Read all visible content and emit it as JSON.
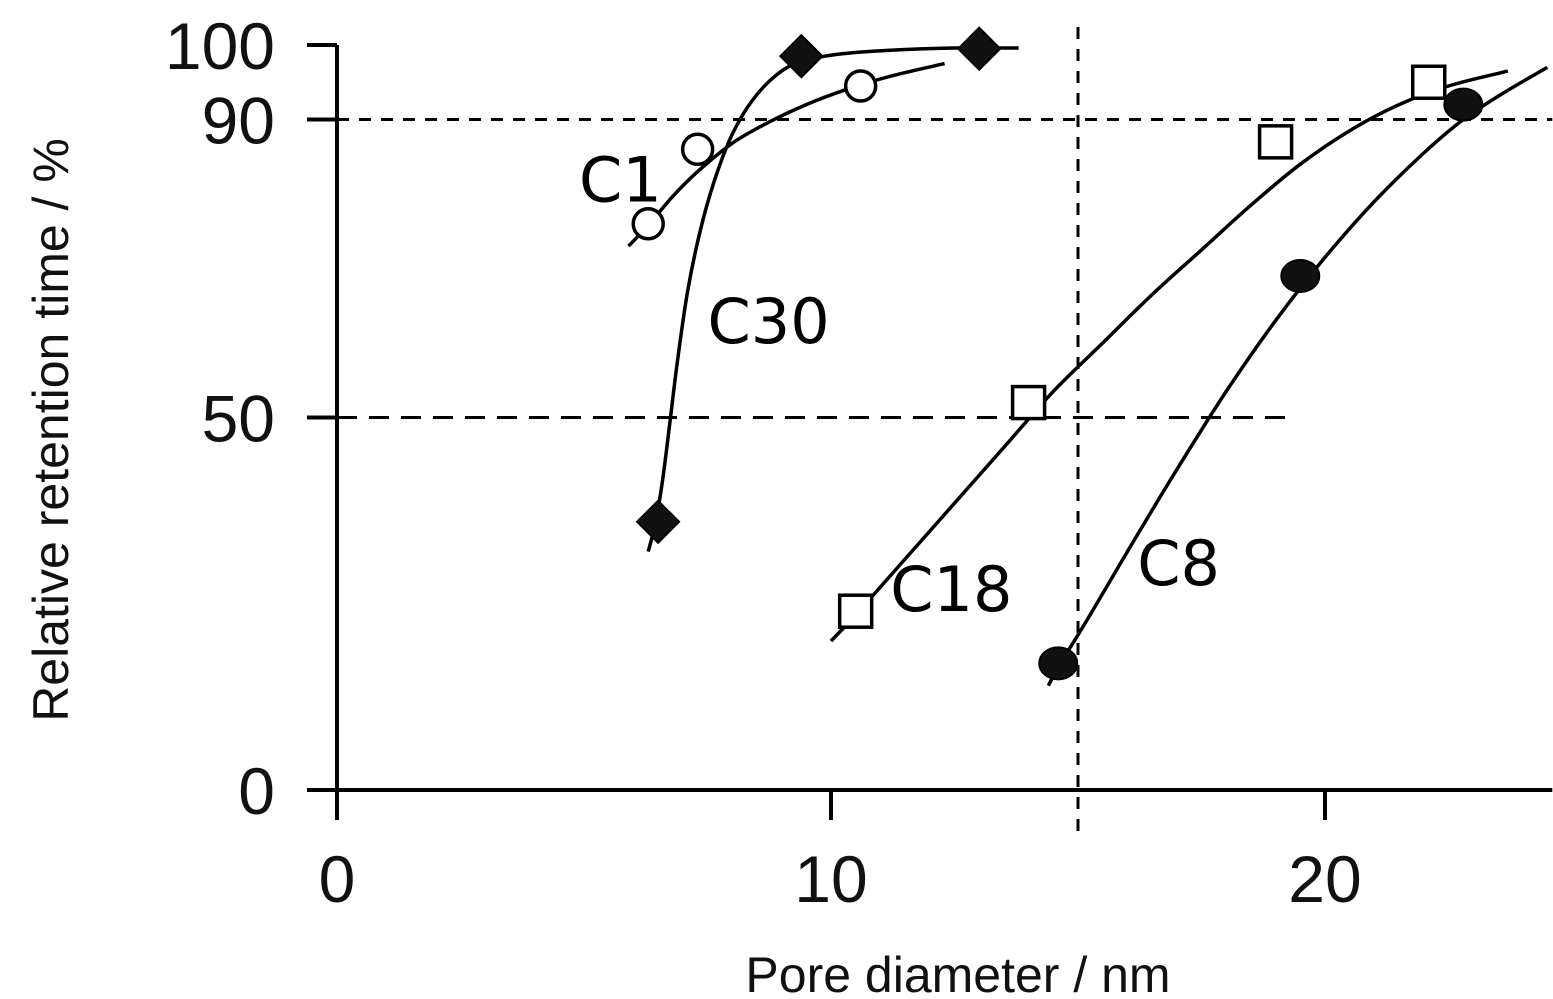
{
  "chart_data": {
    "type": "scatter",
    "xlabel": "Pore diameter / nm",
    "ylabel": "Relative retention time / %",
    "xlim": [
      0,
      24.5
    ],
    "ylim": [
      0,
      100
    ],
    "x_ticks": [
      0,
      10,
      20
    ],
    "y_ticks": [
      0,
      50,
      90,
      100
    ],
    "grid": false,
    "legend": "none",
    "reference_lines": [
      {
        "orientation": "horizontal",
        "y": 90,
        "style": "dashed"
      },
      {
        "orientation": "horizontal",
        "y": 50,
        "style": "dashed"
      },
      {
        "orientation": "vertical",
        "x": 15,
        "style": "dashed"
      }
    ],
    "series": [
      {
        "name": "C1",
        "marker": "open-circle",
        "points": [
          [
            6.3,
            76
          ],
          [
            7.3,
            86
          ],
          [
            10.6,
            94.5
          ]
        ],
        "curve": [
          [
            5.9,
            73
          ],
          [
            6.3,
            75.8
          ],
          [
            6.8,
            79.7
          ],
          [
            7.3,
            83
          ],
          [
            8.0,
            86.8
          ],
          [
            8.7,
            89.5
          ],
          [
            9.5,
            92
          ],
          [
            10.3,
            94
          ],
          [
            11.2,
            95.8
          ],
          [
            12.3,
            97.5
          ]
        ]
      },
      {
        "name": "C30",
        "marker": "filled-diamond",
        "points": [
          [
            6.5,
            36
          ],
          [
            9.4,
            98.5
          ],
          [
            13.0,
            99.5
          ]
        ],
        "curve": [
          [
            6.3,
            32
          ],
          [
            6.45,
            36
          ],
          [
            6.6,
            42
          ],
          [
            6.75,
            50
          ],
          [
            6.9,
            58
          ],
          [
            7.1,
            67
          ],
          [
            7.35,
            75
          ],
          [
            7.65,
            82
          ],
          [
            8.0,
            88
          ],
          [
            8.4,
            92.5
          ],
          [
            8.9,
            96
          ],
          [
            9.4,
            97.8
          ],
          [
            10.2,
            98.8
          ],
          [
            11.2,
            99.3
          ],
          [
            12.5,
            99.6
          ],
          [
            13.8,
            99.6
          ]
        ]
      },
      {
        "name": "C18",
        "marker": "open-square",
        "points": [
          [
            10.5,
            24
          ],
          [
            14.0,
            52
          ],
          [
            19.0,
            87
          ],
          [
            22.1,
            95
          ]
        ],
        "curve": [
          [
            10.0,
            20
          ],
          [
            10.5,
            23.5
          ],
          [
            11.5,
            31
          ],
          [
            12.5,
            38.5
          ],
          [
            13.5,
            46
          ],
          [
            14.5,
            53.5
          ],
          [
            15.5,
            60
          ],
          [
            16.5,
            66.5
          ],
          [
            17.5,
            72.5
          ],
          [
            18.5,
            78.5
          ],
          [
            19.5,
            84
          ],
          [
            20.5,
            88.5
          ],
          [
            21.5,
            92
          ],
          [
            22.5,
            94.5
          ],
          [
            23.7,
            96.5
          ]
        ]
      },
      {
        "name": "C8",
        "marker": "filled-circle",
        "points": [
          [
            14.6,
            17
          ],
          [
            19.5,
            69
          ],
          [
            22.8,
            92
          ]
        ],
        "curve": [
          [
            14.4,
            14
          ],
          [
            14.6,
            16.5
          ],
          [
            15.2,
            23
          ],
          [
            16.0,
            32
          ],
          [
            17.0,
            43
          ],
          [
            18.0,
            53.5
          ],
          [
            19.0,
            63
          ],
          [
            20.0,
            71.5
          ],
          [
            21.0,
            79
          ],
          [
            22.0,
            85.5
          ],
          [
            22.8,
            90
          ],
          [
            23.6,
            93.5
          ],
          [
            24.5,
            97
          ]
        ]
      }
    ],
    "annotations": [
      {
        "text": "C1",
        "x": 4.9,
        "y": 79
      },
      {
        "text": "C30",
        "x": 7.5,
        "y": 60
      },
      {
        "text": "C18",
        "x": 11.2,
        "y": 24
      },
      {
        "text": "C8",
        "x": 16.2,
        "y": 27.5
      }
    ]
  }
}
